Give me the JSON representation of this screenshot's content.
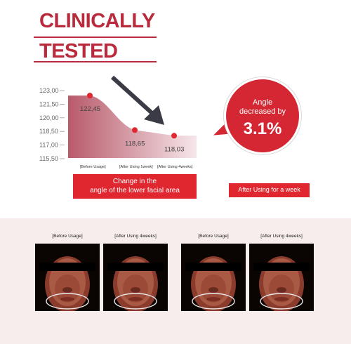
{
  "headline": {
    "line1": "CLINICALLY",
    "line2": "TESTED"
  },
  "chart_data": {
    "type": "area",
    "categories": [
      "[Before Usage]",
      "[After Using 1week]",
      "[After Using 4weeks]"
    ],
    "series": [
      {
        "values": [
          122.45,
          118.65,
          118.03
        ]
      }
    ],
    "value_labels": [
      "122,45",
      "118,65",
      "118,03"
    ],
    "y_ticks": [
      "123,00",
      "121,50",
      "120,00",
      "118,50",
      "117,00",
      "115,50"
    ],
    "ylim": [
      115.5,
      123.0
    ],
    "title": "",
    "xlabel": "",
    "ylabel": "",
    "grid": false,
    "colors": {
      "fill_top": "#c26a78",
      "fill_bottom": "#f7e4e8",
      "marker": "#e0272f",
      "arrow": "#3b3b46"
    }
  },
  "chart_caption": "Change in the\nangle of the lower facial area",
  "bubble": {
    "text": "Angle\ndecreased by",
    "value": "3.1%",
    "color": "#d42733"
  },
  "week_label": "After Using for a week",
  "photos": {
    "titles": [
      "[Before Usage]",
      "[After Using 4weeks]",
      "[Before Usage]",
      "[After Using 4weeks]"
    ]
  },
  "colors": {
    "accent": "#b82a3c",
    "label_bg": "#e0272f",
    "band_bg": "#f7eded"
  }
}
